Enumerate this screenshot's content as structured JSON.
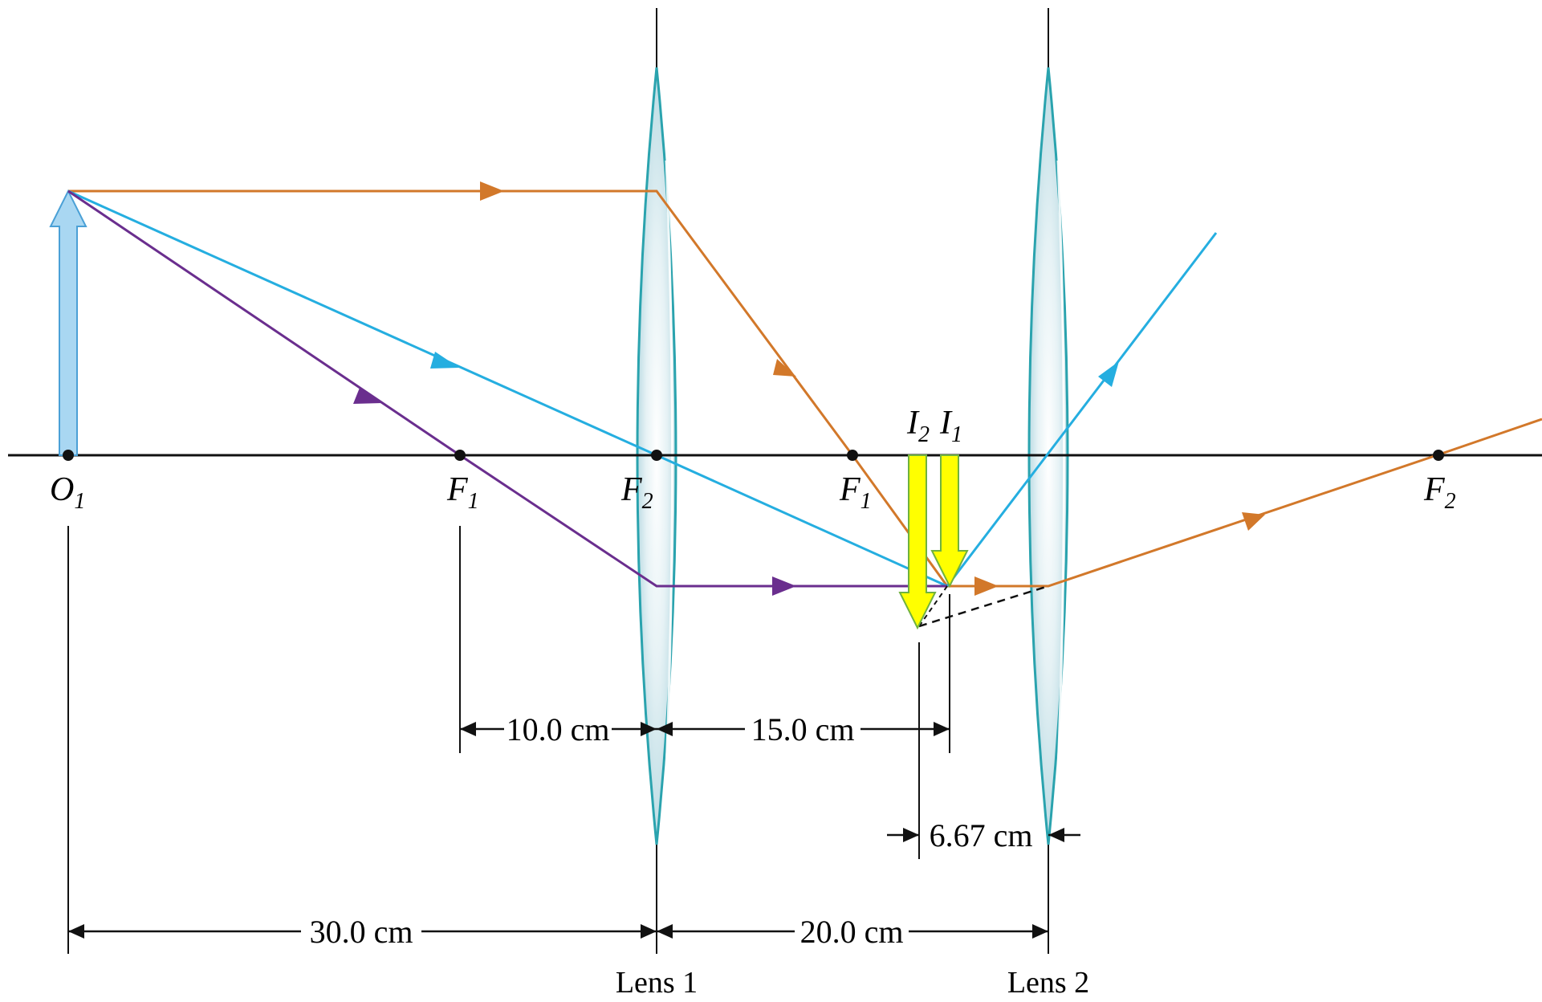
{
  "colors": {
    "axis": "#111111",
    "ray_orange": "#D2782A",
    "ray_cyan": "#25AEE0",
    "ray_purple": "#6A2E8E",
    "object": "#A9D7F2",
    "object_stroke": "#4AA0D6",
    "image": "#FFFF00",
    "image_stroke": "#6FB23E",
    "lens_fill": "#D6EAEF",
    "lens_stroke": "#2AA3AE"
  },
  "labels": {
    "object": {
      "letter": "O",
      "sub": "1"
    },
    "f1_left": {
      "letter": "F",
      "sub": "1"
    },
    "f2_left": {
      "letter": "F",
      "sub": "2"
    },
    "f1_right": {
      "letter": "F",
      "sub": "1"
    },
    "f2_right": {
      "letter": "F",
      "sub": "2"
    },
    "image2": {
      "letter": "I",
      "sub": "2"
    },
    "image1": {
      "letter": "I",
      "sub": "1"
    }
  },
  "dimensions": {
    "d_10": "10.0 cm",
    "d_15": "15.0 cm",
    "d_667": "6.67 cm",
    "d_30": "30.0 cm",
    "d_20": "20.0 cm"
  },
  "lenses": {
    "lens1": "Lens 1",
    "lens2": "Lens 2"
  }
}
